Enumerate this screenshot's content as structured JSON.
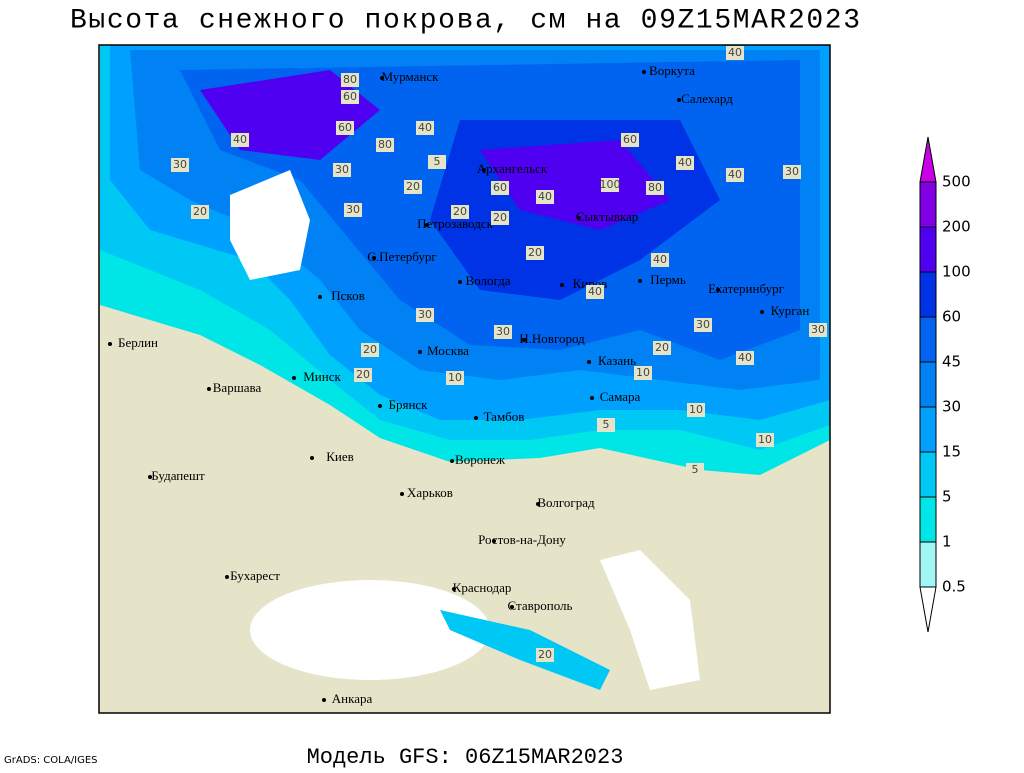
{
  "title": "Высота снежного покрова, см на 09Z15MAR2023",
  "footer": "Модель GFS: 06Z15MAR2023",
  "credit": "GrADS: COLA/IGES",
  "cities": [
    "Мурманск",
    "Воркута",
    "Салехард",
    "Архангельск",
    "Сыктывкар",
    "Петрозаводск",
    "С.Петербург",
    "Вологда",
    "Киров",
    "Пермь",
    "Екатеринбург",
    "Курган",
    "Псков",
    "Берлин",
    "Москва",
    "Н.Новгород",
    "Казань",
    "Варшава",
    "Минск",
    "Брянск",
    "Тамбов",
    "Самара",
    "Киев",
    "Воронеж",
    "Будапешт",
    "Харьков",
    "Волгоград",
    "Ростов-на-Дону",
    "Бухарест",
    "Краснодар",
    "Ставрополь",
    "Анкара"
  ],
  "contour_labels": [
    40,
    80,
    60,
    30,
    40,
    60,
    40,
    80,
    60,
    100,
    80,
    40,
    30,
    40,
    20,
    30,
    20,
    60,
    40,
    30,
    20,
    20,
    5,
    20,
    30,
    20,
    40,
    30,
    40,
    20,
    10,
    10,
    20,
    5,
    10,
    30,
    30,
    40,
    10,
    5,
    20
  ],
  "legend": {
    "levels": [
      0.5,
      1,
      5,
      15,
      30,
      45,
      60,
      100,
      200,
      500
    ],
    "colors": [
      "#ffffff",
      "#a0f5f5",
      "#00e6e6",
      "#00c8f5",
      "#00a0ff",
      "#0082f5",
      "#0064f0",
      "#0032e6",
      "#5000f0",
      "#8200e6",
      "#c800e6"
    ]
  }
}
